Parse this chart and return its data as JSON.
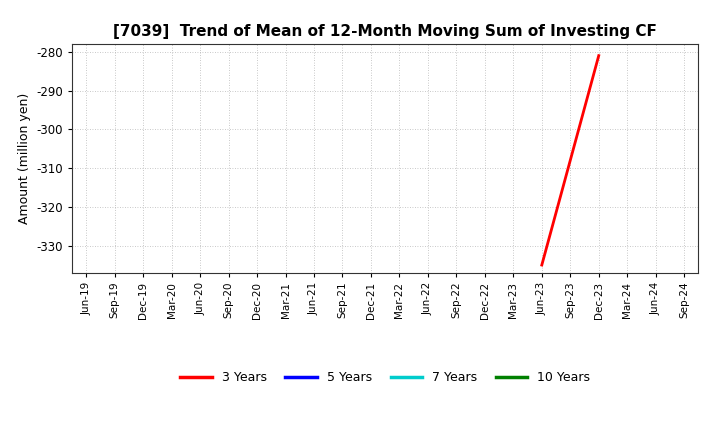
{
  "title": "[7039]  Trend of Mean of 12-Month Moving Sum of Investing CF",
  "ylabel": "Amount (million yen)",
  "ylim": [
    -337,
    -278
  ],
  "yticks": [
    -330,
    -320,
    -310,
    -300,
    -290,
    -280
  ],
  "background_color": "#ffffff",
  "plot_background_color": "#ffffff",
  "grid_color": "#999999",
  "series": [
    {
      "label": "3 Years",
      "color": "#ff0000",
      "linewidth": 2.0,
      "x": [
        "Jun-23",
        "Sep-23",
        "Dec-23"
      ],
      "y": [
        -335.0,
        -308.0,
        -281.0
      ]
    },
    {
      "label": "5 Years",
      "color": "#0000ff",
      "linewidth": 2.0,
      "x": [],
      "y": []
    },
    {
      "label": "7 Years",
      "color": "#00cccc",
      "linewidth": 2.0,
      "x": [],
      "y": []
    },
    {
      "label": "10 Years",
      "color": "#008000",
      "linewidth": 2.0,
      "x": [],
      "y": []
    }
  ],
  "xtick_labels": [
    "Jun-19",
    "Sep-19",
    "Dec-19",
    "Mar-20",
    "Jun-20",
    "Sep-20",
    "Dec-20",
    "Mar-21",
    "Jun-21",
    "Sep-21",
    "Dec-21",
    "Mar-22",
    "Jun-22",
    "Sep-22",
    "Dec-22",
    "Mar-23",
    "Jun-23",
    "Sep-23",
    "Dec-23",
    "Mar-24",
    "Jun-24",
    "Sep-24"
  ],
  "legend_colors": [
    "#ff0000",
    "#0000ff",
    "#00cccc",
    "#008000"
  ],
  "legend_labels": [
    "3 Years",
    "5 Years",
    "7 Years",
    "10 Years"
  ],
  "title_fontsize": 11,
  "ylabel_fontsize": 9,
  "xtick_fontsize": 7.5,
  "ytick_fontsize": 8.5,
  "legend_fontsize": 9
}
